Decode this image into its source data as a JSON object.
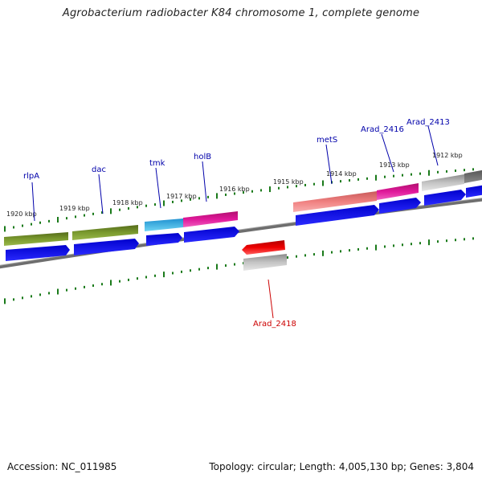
{
  "title": "Agrobacterium radiobacter K84 chromosome 1, complete genome",
  "footer": {
    "accession": "Accession: NC_011985",
    "topology": "Topology: circular; Length: 4,005,130 bp; Genes: 3,804"
  },
  "scale_labels": [
    "1920 kbp",
    "1919 kbp",
    "1918 kbp",
    "1917 kbp",
    "1916 kbp",
    "1915 kbp",
    "1914 kbp",
    "1913 kbp",
    "1912 kbp"
  ],
  "gene_labels": [
    "rlpA",
    "dac",
    "tmk",
    "holB",
    "metS",
    "Arad_2416",
    "Arad_2413",
    "Arad_2418"
  ],
  "colors": {
    "label_forward": "#0000aa",
    "label_reverse": "#cc0000",
    "backbone": "#808080",
    "tick": "#1a7a1a",
    "cds_arrow": "#0000ee",
    "rlpA": "#6b8e23",
    "dac": "#6b8e23",
    "tmk": "#29b6e8",
    "holB": "#e0189a",
    "metS": "#f08080",
    "Arad_2416": "#e0189a",
    "Arad_2413": "#b8b8b8",
    "Arad_2418": "#ee0000"
  }
}
